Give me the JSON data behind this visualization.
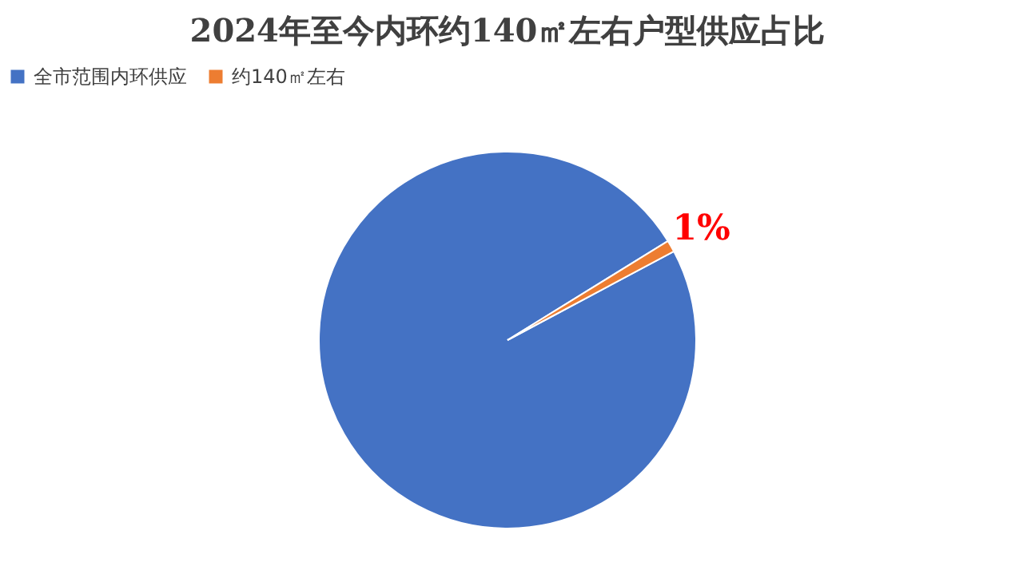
{
  "chart_data": {
    "type": "pie",
    "title": "2024年至今内环约140㎡左右户型供应占比",
    "categories": [
      "全市范围内环供应",
      "约140㎡左右"
    ],
    "values": [
      99,
      1
    ],
    "colors": [
      "#4472c4",
      "#ed7d31"
    ],
    "value_labels": [
      null,
      "1%"
    ],
    "legend": "top"
  }
}
